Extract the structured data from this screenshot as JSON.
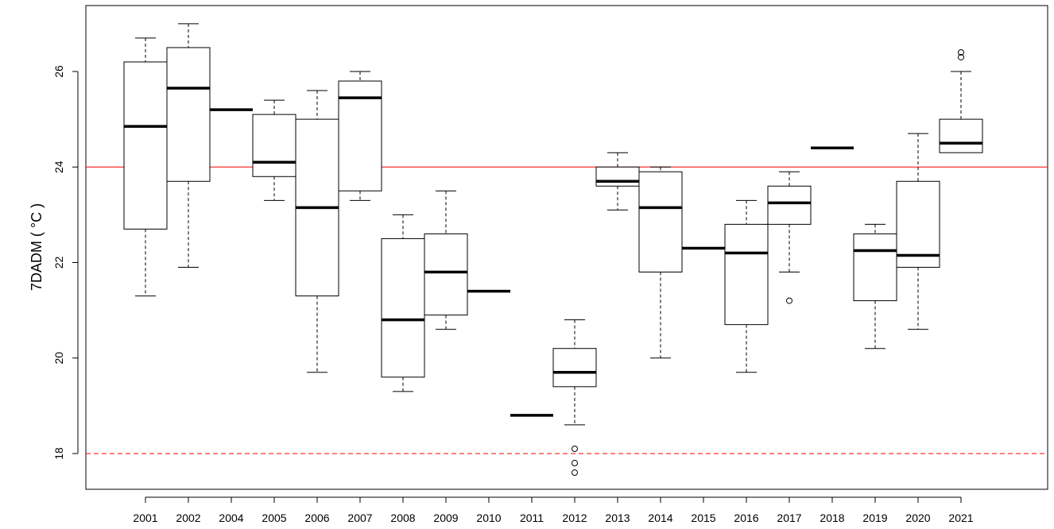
{
  "chart_data": {
    "type": "boxplot",
    "title": "",
    "xlabel": "",
    "ylabel": "7DADM ( °C )",
    "ylim": [
      17.3,
      27.3
    ],
    "yticks": [
      18,
      20,
      22,
      24,
      26
    ],
    "grid": false,
    "legend": "none",
    "colors": {
      "box": "#000000",
      "reference": "#ff0000"
    },
    "reference_lines": [
      {
        "y": 24,
        "style": "solid",
        "color": "#ff0000"
      },
      {
        "y": 18,
        "style": "dashed",
        "color": "#ff0000"
      }
    ],
    "categories": [
      "2001",
      "2002",
      "2004",
      "2005",
      "2006",
      "2007",
      "2008",
      "2009",
      "2010",
      "2011",
      "2012",
      "2013",
      "2014",
      "2015",
      "2016",
      "2017",
      "2018",
      "2019",
      "2020",
      "2021"
    ],
    "boxes": [
      {
        "min": 21.3,
        "q1": 22.7,
        "median": 24.85,
        "q3": 26.2,
        "max": 26.7,
        "outliers": []
      },
      {
        "min": 21.9,
        "q1": 23.7,
        "median": 25.65,
        "q3": 26.5,
        "max": 27.0,
        "outliers": []
      },
      {
        "min": 25.2,
        "q1": 25.2,
        "median": 25.2,
        "q3": 25.2,
        "max": 25.2,
        "outliers": []
      },
      {
        "min": 23.3,
        "q1": 23.8,
        "median": 24.1,
        "q3": 25.1,
        "max": 25.4,
        "outliers": []
      },
      {
        "min": 19.7,
        "q1": 21.3,
        "median": 23.15,
        "q3": 25.0,
        "max": 25.6,
        "outliers": []
      },
      {
        "min": 23.3,
        "q1": 23.5,
        "median": 25.45,
        "q3": 25.8,
        "max": 26.0,
        "outliers": []
      },
      {
        "min": 19.3,
        "q1": 19.6,
        "median": 20.8,
        "q3": 22.5,
        "max": 23.0,
        "outliers": []
      },
      {
        "min": 20.6,
        "q1": 20.9,
        "median": 21.8,
        "q3": 22.6,
        "max": 23.5,
        "outliers": []
      },
      {
        "min": 21.4,
        "q1": 21.4,
        "median": 21.4,
        "q3": 21.4,
        "max": 21.4,
        "outliers": []
      },
      {
        "min": 18.8,
        "q1": 18.8,
        "median": 18.8,
        "q3": 18.8,
        "max": 18.8,
        "outliers": []
      },
      {
        "min": 18.6,
        "q1": 19.4,
        "median": 19.7,
        "q3": 20.2,
        "max": 20.8,
        "outliers": [
          18.1,
          17.8,
          17.6
        ]
      },
      {
        "min": 23.1,
        "q1": 23.6,
        "median": 23.7,
        "q3": 24.0,
        "max": 24.3,
        "outliers": []
      },
      {
        "min": 20.0,
        "q1": 21.8,
        "median": 23.15,
        "q3": 23.9,
        "max": 24.0,
        "outliers": []
      },
      {
        "min": 22.3,
        "q1": 22.3,
        "median": 22.3,
        "q3": 22.3,
        "max": 22.3,
        "outliers": []
      },
      {
        "min": 19.7,
        "q1": 20.7,
        "median": 22.2,
        "q3": 22.8,
        "max": 23.3,
        "outliers": []
      },
      {
        "min": 21.8,
        "q1": 22.8,
        "median": 23.25,
        "q3": 23.6,
        "max": 23.9,
        "outliers": [
          21.2
        ]
      },
      {
        "min": 24.4,
        "q1": 24.4,
        "median": 24.4,
        "q3": 24.4,
        "max": 24.4,
        "outliers": []
      },
      {
        "min": 20.2,
        "q1": 21.2,
        "median": 22.25,
        "q3": 22.6,
        "max": 22.8,
        "outliers": []
      },
      {
        "min": 20.6,
        "q1": 21.9,
        "median": 22.15,
        "q3": 23.7,
        "max": 24.7,
        "outliers": []
      },
      {
        "min": 24.3,
        "q1": 24.3,
        "median": 24.5,
        "q3": 25.0,
        "max": 26.0,
        "outliers": [
          26.3,
          26.4
        ]
      }
    ]
  }
}
